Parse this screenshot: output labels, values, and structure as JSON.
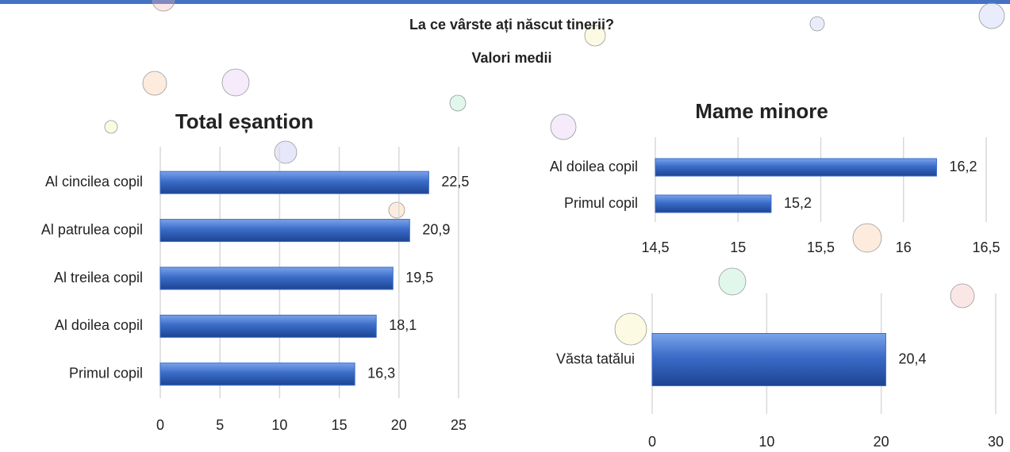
{
  "header": {
    "title": "La ce vârste ați născut tinerii?",
    "subtitle": "Valori medii"
  },
  "chart_data": [
    {
      "type": "hbar",
      "title": "Total eșantion",
      "categories": [
        "Al cincilea copil",
        "Al patrulea copil",
        "Al treilea copil",
        "Al doilea copil",
        "Primul copil"
      ],
      "values": [
        22.5,
        20.9,
        19.5,
        18.1,
        16.3
      ],
      "value_labels": [
        "22,5",
        "20,9",
        "19,5",
        "18,1",
        "16,3"
      ],
      "color": "#3a6cc8",
      "xlim": [
        0,
        25
      ],
      "xticks": [
        0,
        5,
        10,
        15,
        20,
        25
      ],
      "grid": true
    },
    {
      "type": "hbar",
      "title": "Mame minore",
      "categories": [
        "Al doilea copil",
        "Primul copil"
      ],
      "values": [
        16.2,
        15.2
      ],
      "value_labels": [
        "16,2",
        "15,2"
      ],
      "color": "#3a6cc8",
      "xlim": [
        14.5,
        16.5
      ],
      "xticks": [
        {
          "value": 14.5,
          "label": "14,5"
        },
        15,
        {
          "value": 15.5,
          "label": "15,5"
        },
        16,
        {
          "value": 16.5,
          "label": "16,5"
        }
      ],
      "grid": true
    },
    {
      "type": "hbar",
      "categories": [
        "Văsta tatălui"
      ],
      "values": [
        20.4
      ],
      "value_labels": [
        "20,4"
      ],
      "color": "#3a6cc8",
      "xlim": [
        0,
        30
      ],
      "xticks": [
        0,
        10,
        20,
        30
      ],
      "grid": true
    }
  ]
}
